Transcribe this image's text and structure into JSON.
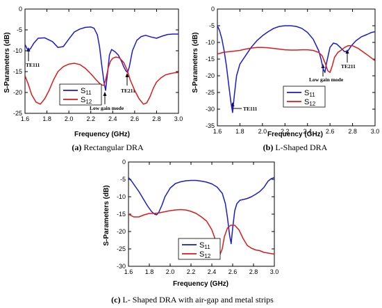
{
  "chart_data": [
    {
      "type": "line",
      "caption_label": "(a)",
      "caption_text": "Rectangular DRA",
      "xlabel": "Frequency (GHz)",
      "ylabel": "S-Parameters (dB)",
      "xlim": [
        1.6,
        3.0
      ],
      "ylim": [
        -25,
        0
      ],
      "xticks": [
        "1.6",
        "1.8",
        "2.0",
        "2.2",
        "2.4",
        "2.6",
        "2.8",
        "3.0"
      ],
      "yticks": [
        "0",
        "-5",
        "-10",
        "-15",
        "-20",
        "-25"
      ],
      "legend_position": "center-left",
      "series": [
        {
          "name": "S11",
          "sub": "11",
          "color": "#1a1ad0",
          "x": [
            1.6,
            1.62,
            1.63,
            1.65,
            1.68,
            1.72,
            1.78,
            1.85,
            1.9,
            1.95,
            2.0,
            2.05,
            2.1,
            2.15,
            2.2,
            2.23,
            2.26,
            2.28,
            2.3,
            2.32,
            2.335,
            2.35,
            2.37,
            2.39,
            2.42,
            2.45,
            2.48,
            2.5,
            2.52,
            2.535,
            2.55,
            2.58,
            2.62,
            2.66,
            2.7,
            2.75,
            2.8,
            2.85,
            2.9,
            2.95,
            3.0
          ],
          "y": [
            -8.5,
            -9.6,
            -9.9,
            -9.5,
            -8.2,
            -7.0,
            -6.9,
            -7.8,
            -9.2,
            -9.0,
            -7.2,
            -5.5,
            -4.8,
            -4.4,
            -4.3,
            -4.6,
            -6.2,
            -9.0,
            -13.5,
            -17.5,
            -19.5,
            -16.0,
            -11.0,
            -9.7,
            -10.2,
            -11.0,
            -12.5,
            -13.8,
            -14.8,
            -15.2,
            -14.0,
            -10.0,
            -7.5,
            -6.6,
            -6.3,
            -6.7,
            -7.0,
            -6.5,
            -6.1,
            -6.0,
            -6.0
          ]
        },
        {
          "name": "S12",
          "sub": "12",
          "color": "#dd1a1a",
          "x": [
            1.6,
            1.63,
            1.66,
            1.7,
            1.74,
            1.78,
            1.82,
            1.86,
            1.9,
            1.95,
            2.0,
            2.05,
            2.1,
            2.15,
            2.2,
            2.25,
            2.28,
            2.3,
            2.32,
            2.34,
            2.36,
            2.38,
            2.4,
            2.43,
            2.46,
            2.5,
            2.53,
            2.56,
            2.6,
            2.64,
            2.68,
            2.71,
            2.74,
            2.77,
            2.8,
            2.84,
            2.88,
            2.92,
            2.96,
            3.0
          ],
          "y": [
            -16.0,
            -18.0,
            -20.5,
            -22.3,
            -22.8,
            -21.5,
            -19.5,
            -17.0,
            -15.0,
            -13.8,
            -13.2,
            -13.0,
            -13.3,
            -14.2,
            -15.5,
            -17.0,
            -17.8,
            -18.2,
            -18.3,
            -16.5,
            -14.0,
            -12.5,
            -11.8,
            -11.5,
            -11.7,
            -12.8,
            -14.5,
            -17.0,
            -19.5,
            -21.5,
            -22.8,
            -22.5,
            -21.0,
            -19.0,
            -17.5,
            -16.5,
            -15.8,
            -15.5,
            -15.3,
            -15.2
          ]
        }
      ],
      "annotations": [
        "TE111",
        "Low gain mode",
        "TE211"
      ]
    },
    {
      "type": "line",
      "caption_label": "(b)",
      "caption_text": "L-Shaped DRA",
      "xlabel": "Frequency (GHz)",
      "ylabel": "S-Parameters (dB)",
      "xlim": [
        1.6,
        3.0
      ],
      "ylim": [
        -35,
        0
      ],
      "xticks": [
        "1.6",
        "1.8",
        "2.0",
        "2.2",
        "2.4",
        "2.6",
        "2.8",
        "3.0"
      ],
      "yticks": [
        "0",
        "-5",
        "-10",
        "-15",
        "-20",
        "-25",
        "-30",
        "-35"
      ],
      "legend_position": "bottom-right",
      "series": [
        {
          "name": "S11",
          "sub": "11",
          "color": "#1a1ad0",
          "x": [
            1.6,
            1.62,
            1.64,
            1.66,
            1.68,
            1.7,
            1.72,
            1.735,
            1.75,
            1.77,
            1.8,
            1.85,
            1.9,
            1.95,
            2.0,
            2.05,
            2.1,
            2.15,
            2.2,
            2.25,
            2.3,
            2.35,
            2.4,
            2.45,
            2.5,
            2.52,
            2.54,
            2.555,
            2.57,
            2.6,
            2.63,
            2.66,
            2.7,
            2.73,
            2.76,
            2.79,
            2.83,
            2.88,
            2.93,
            2.97,
            3.0
          ],
          "y": [
            -5.0,
            -6.5,
            -9.0,
            -12.5,
            -17.0,
            -22.5,
            -28.0,
            -31.0,
            -26.0,
            -20.0,
            -16.5,
            -14.0,
            -11.5,
            -9.5,
            -8.0,
            -6.8,
            -5.8,
            -5.2,
            -5.0,
            -5.0,
            -5.2,
            -5.8,
            -7.0,
            -9.0,
            -12.5,
            -15.0,
            -18.0,
            -19.0,
            -16.0,
            -11.5,
            -10.2,
            -10.5,
            -11.8,
            -12.8,
            -12.5,
            -11.0,
            -9.5,
            -8.3,
            -7.6,
            -7.0,
            -6.8
          ]
        },
        {
          "name": "S12",
          "sub": "12",
          "color": "#dd1a1a",
          "x": [
            1.6,
            1.65,
            1.7,
            1.75,
            1.8,
            1.85,
            1.9,
            1.95,
            2.0,
            2.05,
            2.1,
            2.15,
            2.2,
            2.25,
            2.3,
            2.35,
            2.4,
            2.45,
            2.5,
            2.53,
            2.56,
            2.58,
            2.6,
            2.62,
            2.64,
            2.67,
            2.7,
            2.73,
            2.76,
            2.8,
            2.85,
            2.9,
            2.95,
            3.0
          ],
          "y": [
            -13.5,
            -13.0,
            -12.8,
            -12.6,
            -12.4,
            -12.0,
            -11.7,
            -11.5,
            -11.5,
            -11.6,
            -11.8,
            -12.0,
            -12.2,
            -12.3,
            -12.3,
            -12.2,
            -12.2,
            -12.4,
            -13.0,
            -14.0,
            -16.5,
            -18.5,
            -19.0,
            -17.0,
            -14.5,
            -13.0,
            -12.3,
            -11.5,
            -11.0,
            -11.0,
            -11.8,
            -13.0,
            -14.2,
            -15.5
          ]
        }
      ],
      "annotations": [
        "TE111",
        "Low gain mode",
        "TE211"
      ]
    },
    {
      "type": "line",
      "caption_label": "(c)",
      "caption_text": "L- Shaped DRA with air-gap and metal strips",
      "xlabel": "Frequency (GHz)",
      "ylabel": "S-Parameters (dB)",
      "xlim": [
        1.6,
        3.0
      ],
      "ylim": [
        -30,
        0
      ],
      "xticks": [
        "1.6",
        "1.8",
        "2.0",
        "2.2",
        "2.4",
        "2.6",
        "2.8",
        "3.0"
      ],
      "yticks": [
        "0",
        "-5",
        "-10",
        "-15",
        "-20",
        "-25",
        "-30"
      ],
      "legend_position": "bottom-center",
      "series": [
        {
          "name": "S11",
          "sub": "11",
          "color": "#1a1ad0",
          "x": [
            1.6,
            1.63,
            1.66,
            1.7,
            1.74,
            1.78,
            1.82,
            1.85,
            1.87,
            1.89,
            1.92,
            1.95,
            2.0,
            2.05,
            2.1,
            2.15,
            2.2,
            2.25,
            2.3,
            2.35,
            2.4,
            2.45,
            2.5,
            2.53,
            2.55,
            2.57,
            2.585,
            2.6,
            2.62,
            2.64,
            2.67,
            2.7,
            2.74,
            2.78,
            2.82,
            2.86,
            2.9,
            2.94,
            2.97,
            3.0
          ],
          "y": [
            -4.5,
            -5.5,
            -6.8,
            -8.5,
            -10.5,
            -12.5,
            -14.2,
            -15.0,
            -15.2,
            -14.5,
            -12.5,
            -10.0,
            -7.5,
            -6.2,
            -5.7,
            -5.4,
            -5.3,
            -5.3,
            -5.5,
            -5.8,
            -6.3,
            -7.2,
            -9.0,
            -12.0,
            -16.0,
            -21.0,
            -23.5,
            -19.0,
            -14.0,
            -12.0,
            -11.0,
            -10.8,
            -10.5,
            -10.0,
            -9.3,
            -8.5,
            -7.3,
            -5.5,
            -4.8,
            -4.5
          ]
        },
        {
          "name": "S12",
          "sub": "12",
          "color": "#dd1a1a",
          "x": [
            1.6,
            1.65,
            1.7,
            1.75,
            1.8,
            1.85,
            1.9,
            1.95,
            2.0,
            2.05,
            2.1,
            2.15,
            2.2,
            2.25,
            2.3,
            2.35,
            2.4,
            2.43,
            2.46,
            2.48,
            2.5,
            2.52,
            2.55,
            2.58,
            2.62,
            2.66,
            2.7,
            2.74,
            2.78,
            2.82,
            2.86,
            2.9,
            2.94,
            2.98,
            3.0
          ],
          "y": [
            -15.0,
            -15.8,
            -15.8,
            -15.2,
            -14.8,
            -14.8,
            -14.6,
            -14.3,
            -14.0,
            -13.8,
            -13.7,
            -13.8,
            -14.2,
            -14.8,
            -15.8,
            -17.0,
            -19.5,
            -22.0,
            -25.0,
            -26.5,
            -25.0,
            -21.5,
            -19.0,
            -18.2,
            -18.2,
            -19.5,
            -22.0,
            -24.0,
            -24.8,
            -25.3,
            -25.5,
            -26.0,
            -26.2,
            -26.4,
            -26.5
          ]
        }
      ],
      "annotations": []
    }
  ]
}
